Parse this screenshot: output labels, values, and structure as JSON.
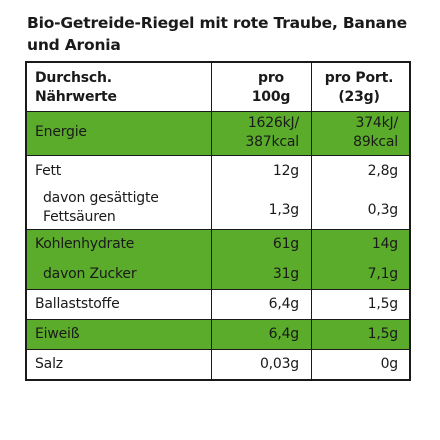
{
  "title": "Bio-Getreide-Riegel mit rote Traube, Banane und Aronia",
  "header": {
    "col1": [
      "Durchsch.",
      "Nährwerte"
    ],
    "col2": [
      "pro",
      "100g"
    ],
    "col3": [
      "pro Port.",
      "(23g)"
    ]
  },
  "rows": [
    {
      "label": "Energie",
      "per100": [
        "1626kJ/",
        "387kcal"
      ],
      "perPortion": [
        "374kJ/",
        "89kcal"
      ],
      "highlight": true
    },
    {
      "label": "Fett",
      "per100": "12g",
      "perPortion": "2,8g",
      "highlight": false
    },
    {
      "label": [
        "davon gesättigte",
        "Fettsäuren"
      ],
      "per100": "1,3g",
      "perPortion": "0,3g",
      "highlight": false
    },
    {
      "label": "Kohlenhydrate",
      "per100": "61g",
      "perPortion": "14g",
      "highlight": true
    },
    {
      "label": "davon Zucker",
      "per100": "31g",
      "perPortion": "7,1g",
      "highlight": true
    },
    {
      "label": "Ballaststoffe",
      "per100": "6,4g",
      "perPortion": "1,5g",
      "highlight": false
    },
    {
      "label": "Eiweiß",
      "per100": "6,4g",
      "perPortion": "1,5g",
      "highlight": true
    },
    {
      "label": "Salz",
      "per100": "0,03g",
      "perPortion": "0g",
      "highlight": false
    }
  ],
  "colors": {
    "highlight": "#5aac2a",
    "border": "#1a1a1a"
  }
}
